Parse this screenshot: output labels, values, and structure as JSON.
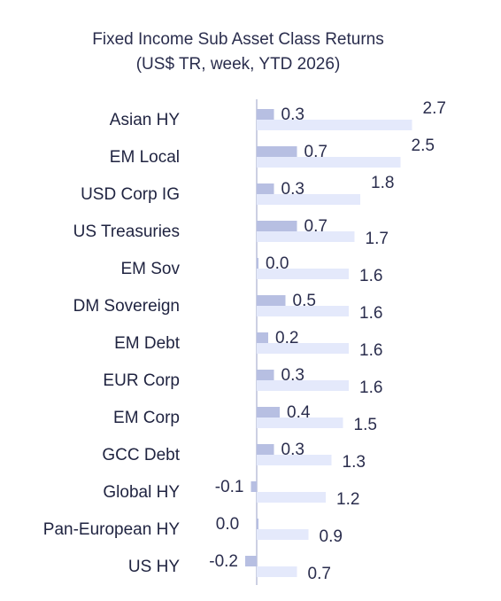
{
  "chart_data": {
    "type": "bar",
    "title": "Fixed Income Sub Asset Class Returns",
    "subtitle": "(US$ TR, week, YTD 2026)",
    "categories": [
      "Asian HY",
      "EM Local",
      "USD Corp IG",
      "US Treasuries",
      "EM Sov",
      "DM Sovereign",
      "EM Debt",
      "EUR Corp",
      "EM Corp",
      "GCC Debt",
      "Global HY",
      "Pan-European HY",
      "US HY"
    ],
    "series": [
      {
        "values": [
          0.3,
          0.7,
          0.3,
          0.7,
          0.0,
          0.5,
          0.2,
          0.3,
          0.4,
          0.3,
          -0.1,
          0.0,
          -0.2
        ]
      },
      {
        "values": [
          2.7,
          2.5,
          1.8,
          1.7,
          1.6,
          1.6,
          1.6,
          1.6,
          1.5,
          1.3,
          1.2,
          0.9,
          0.7
        ]
      }
    ],
    "value_labels": {
      "week": [
        "0.3",
        "0.7",
        "0.3",
        "0.7",
        "0.0",
        "0.5",
        "0.2",
        "0.3",
        "0.4",
        "0.3",
        "-0.1",
        "0.0",
        "-0.2"
      ],
      "ytd": [
        "2.7",
        "2.5",
        "1.8",
        "1.7",
        "1.6",
        "1.6",
        "1.6",
        "1.6",
        "1.5",
        "1.3",
        "1.2",
        "0.9",
        "0.7"
      ]
    },
    "colors": {
      "week": "#b7bfe2",
      "ytd": "#e4e9fb",
      "axis": "#aab1d0"
    },
    "orientation": "horizontal",
    "xlim": [
      -0.3,
      2.7
    ],
    "grid": false,
    "legend": "none"
  }
}
